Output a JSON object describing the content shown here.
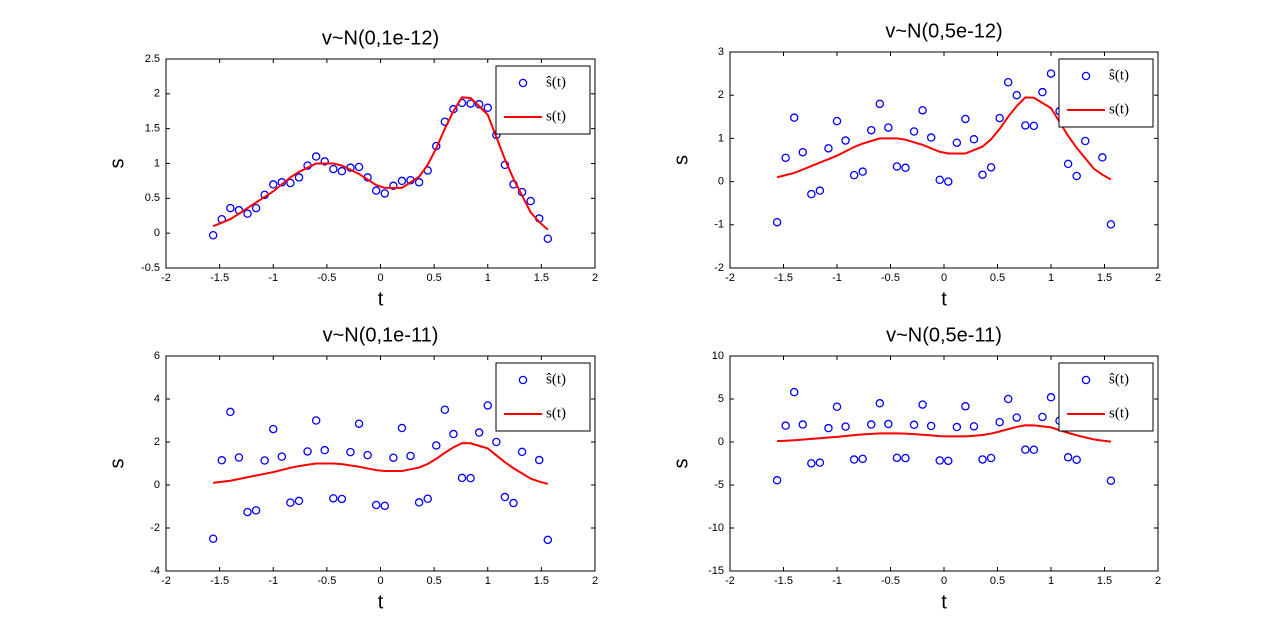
{
  "chart_data": [
    {
      "type": "line",
      "title": "v~N(0,1e-12)",
      "x_label": "t",
      "y_label": "s",
      "xlim": [
        -2,
        2
      ],
      "xticks": [
        -2,
        -1.5,
        -1,
        -0.5,
        0,
        0.5,
        1,
        1.5,
        2
      ],
      "ylim": [
        -0.5,
        2.5
      ],
      "yticks": [
        -0.5,
        0,
        0.5,
        1,
        1.5,
        2,
        2.5
      ],
      "legend": "upper right",
      "x": [
        -1.56,
        -1.48,
        -1.4,
        -1.32,
        -1.24,
        -1.16,
        -1.08,
        -1,
        -0.92,
        -0.84,
        -0.76,
        -0.68,
        -0.6,
        -0.52,
        -0.44,
        -0.36,
        -0.28,
        -0.2,
        -0.12,
        -0.04,
        0.04,
        0.12,
        0.2,
        0.28,
        0.36,
        0.44,
        0.52,
        0.6,
        0.68,
        0.76,
        0.84,
        0.92,
        1,
        1.08,
        1.16,
        1.24,
        1.32,
        1.4,
        1.48,
        1.56
      ],
      "series": [
        {
          "name": "ŝ(t)",
          "color": "#0000ff",
          "marker": "circle",
          "values": [
            -0.03,
            0.2,
            0.36,
            0.33,
            0.28,
            0.36,
            0.55,
            0.7,
            0.73,
            0.72,
            0.8,
            0.97,
            1.1,
            1.03,
            0.92,
            0.89,
            0.94,
            0.95,
            0.8,
            0.61,
            0.57,
            0.68,
            0.75,
            0.76,
            0.73,
            0.9,
            1.25,
            1.6,
            1.78,
            1.87,
            1.86,
            1.85,
            1.8,
            1.41,
            0.98,
            0.7,
            0.59,
            0.46,
            0.21,
            -0.08
          ]
        },
        {
          "name": "s(t)",
          "color": "#ff0000",
          "marker": "none",
          "values": [
            0.1,
            0.15,
            0.2,
            0.28,
            0.36,
            0.44,
            0.52,
            0.6,
            0.7,
            0.8,
            0.88,
            0.94,
            1.0,
            1.0,
            1.0,
            0.97,
            0.91,
            0.85,
            0.77,
            0.69,
            0.65,
            0.65,
            0.65,
            0.73,
            0.81,
            0.98,
            1.22,
            1.5,
            1.75,
            1.95,
            1.94,
            1.82,
            1.7,
            1.38,
            1.06,
            0.78,
            0.54,
            0.3,
            0.16,
            0.05
          ]
        }
      ]
    },
    {
      "type": "line",
      "title": "v~N(0,5e-12)",
      "x_label": "t",
      "y_label": "s",
      "xlim": [
        -2,
        2
      ],
      "xticks": [
        -2,
        -1.5,
        -1,
        -0.5,
        0,
        0.5,
        1,
        1.5,
        2
      ],
      "ylim": [
        -2,
        3
      ],
      "yticks": [
        -2,
        -1,
        0,
        1,
        2,
        3
      ],
      "legend": "upper right",
      "x": [
        -1.56,
        -1.48,
        -1.4,
        -1.32,
        -1.24,
        -1.16,
        -1.08,
        -1,
        -0.92,
        -0.84,
        -0.76,
        -0.68,
        -0.6,
        -0.52,
        -0.44,
        -0.36,
        -0.28,
        -0.2,
        -0.12,
        -0.04,
        0.04,
        0.12,
        0.2,
        0.28,
        0.36,
        0.44,
        0.52,
        0.6,
        0.68,
        0.76,
        0.84,
        0.92,
        1,
        1.08,
        1.16,
        1.24,
        1.32,
        1.4,
        1.48,
        1.56
      ],
      "series": [
        {
          "name": "ŝ(t)",
          "color": "#0000ff",
          "marker": "circle",
          "values": [
            -0.94,
            0.55,
            1.48,
            0.68,
            -0.29,
            -0.21,
            0.77,
            1.4,
            0.95,
            0.15,
            0.23,
            1.19,
            1.8,
            1.25,
            0.35,
            0.32,
            1.16,
            1.65,
            1.02,
            0.04,
            0,
            0.9,
            1.45,
            0.98,
            0.16,
            0.33,
            1.47,
            2.3,
            2.0,
            1.3,
            1.29,
            2.07,
            2.5,
            1.63,
            0.41,
            0.13,
            0.94,
            1.58,
            0.56,
            -0.99
          ]
        },
        {
          "name": "s(t)",
          "color": "#ff0000",
          "marker": "none",
          "values": [
            0.1,
            0.15,
            0.2,
            0.28,
            0.36,
            0.44,
            0.52,
            0.6,
            0.7,
            0.8,
            0.88,
            0.94,
            1.0,
            1.0,
            1.0,
            0.97,
            0.91,
            0.85,
            0.77,
            0.69,
            0.65,
            0.65,
            0.65,
            0.73,
            0.81,
            0.98,
            1.22,
            1.5,
            1.75,
            1.95,
            1.94,
            1.82,
            1.7,
            1.38,
            1.06,
            0.78,
            0.54,
            0.3,
            0.16,
            0.05
          ]
        }
      ]
    },
    {
      "type": "line",
      "title": "v~N(0,1e-11)",
      "x_label": "t",
      "y_label": "s",
      "xlim": [
        -2,
        2
      ],
      "xticks": [
        -2,
        -1.5,
        -1,
        -0.5,
        0,
        0.5,
        1,
        1.5,
        2
      ],
      "ylim": [
        -4,
        6
      ],
      "yticks": [
        -4,
        -2,
        0,
        2,
        4,
        6
      ],
      "legend": "upper right",
      "x": [
        -1.56,
        -1.48,
        -1.4,
        -1.32,
        -1.24,
        -1.16,
        -1.08,
        -1,
        -0.92,
        -0.84,
        -0.76,
        -0.68,
        -0.6,
        -0.52,
        -0.44,
        -0.36,
        -0.28,
        -0.2,
        -0.12,
        -0.04,
        0.04,
        0.12,
        0.2,
        0.28,
        0.36,
        0.44,
        0.52,
        0.6,
        0.68,
        0.76,
        0.84,
        0.92,
        1,
        1.08,
        1.16,
        1.24,
        1.32,
        1.4,
        1.48,
        1.56
      ],
      "series": [
        {
          "name": "ŝ(t)",
          "color": "#0000ff",
          "marker": "circle",
          "values": [
            -2.5,
            1.15,
            3.4,
            1.28,
            -1.26,
            -1.18,
            1.14,
            2.6,
            1.32,
            -0.82,
            -0.74,
            1.56,
            3.0,
            1.62,
            -0.62,
            -0.65,
            1.53,
            2.85,
            1.39,
            -0.93,
            -0.97,
            1.27,
            2.65,
            1.35,
            -0.81,
            -0.64,
            1.84,
            3.5,
            2.37,
            0.33,
            0.32,
            2.44,
            3.7,
            2.0,
            -0.56,
            -0.84,
            1.54,
            3.5,
            1.16,
            -2.55
          ]
        },
        {
          "name": "s(t)",
          "color": "#ff0000",
          "marker": "none",
          "values": [
            0.1,
            0.15,
            0.2,
            0.28,
            0.36,
            0.44,
            0.52,
            0.6,
            0.7,
            0.8,
            0.88,
            0.94,
            1.0,
            1.0,
            1.0,
            0.97,
            0.91,
            0.85,
            0.77,
            0.69,
            0.65,
            0.65,
            0.65,
            0.73,
            0.81,
            0.98,
            1.22,
            1.5,
            1.75,
            1.95,
            1.94,
            1.82,
            1.7,
            1.38,
            1.06,
            0.78,
            0.54,
            0.3,
            0.16,
            0.05
          ]
        }
      ]
    },
    {
      "type": "line",
      "title": "v~N(0,5e-11)",
      "x_label": "t",
      "y_label": "s",
      "xlim": [
        -2,
        2
      ],
      "xticks": [
        -2,
        -1.5,
        -1,
        -0.5,
        0,
        0.5,
        1,
        1.5,
        2
      ],
      "ylim": [
        -15,
        10
      ],
      "yticks": [
        -15,
        -10,
        -5,
        0,
        5,
        10
      ],
      "legend": "upper right",
      "x": [
        -1.56,
        -1.48,
        -1.4,
        -1.32,
        -1.24,
        -1.16,
        -1.08,
        -1,
        -0.92,
        -0.84,
        -0.76,
        -0.68,
        -0.6,
        -0.52,
        -0.44,
        -0.36,
        -0.28,
        -0.2,
        -0.12,
        -0.04,
        0.04,
        0.12,
        0.2,
        0.28,
        0.36,
        0.44,
        0.52,
        0.6,
        0.68,
        0.76,
        0.84,
        0.92,
        1,
        1.08,
        1.16,
        1.24,
        1.32,
        1.4,
        1.48,
        1.56
      ],
      "series": [
        {
          "name": "ŝ(t)",
          "color": "#0000ff",
          "marker": "circle",
          "values": [
            -4.45,
            1.9,
            5.8,
            2.03,
            -2.48,
            -2.4,
            1.61,
            4.1,
            1.79,
            -2.04,
            -1.96,
            2.03,
            4.5,
            2.09,
            -1.84,
            -1.87,
            2.0,
            4.35,
            1.86,
            -2.15,
            -2.19,
            1.74,
            4.15,
            1.82,
            -2.03,
            -1.86,
            2.31,
            5.0,
            2.84,
            -0.89,
            -0.9,
            2.91,
            5.2,
            2.47,
            -1.78,
            -2.06,
            2.29,
            5.9,
            1.91,
            -4.5
          ]
        },
        {
          "name": "s(t)",
          "color": "#ff0000",
          "marker": "none",
          "values": [
            0.1,
            0.15,
            0.2,
            0.28,
            0.36,
            0.44,
            0.52,
            0.6,
            0.7,
            0.8,
            0.88,
            0.94,
            1.0,
            1.0,
            1.0,
            0.97,
            0.91,
            0.85,
            0.77,
            0.69,
            0.65,
            0.65,
            0.65,
            0.73,
            0.81,
            0.98,
            1.22,
            1.5,
            1.75,
            1.95,
            1.94,
            1.82,
            1.7,
            1.38,
            1.06,
            0.78,
            0.54,
            0.3,
            0.16,
            0.05
          ]
        }
      ]
    }
  ]
}
